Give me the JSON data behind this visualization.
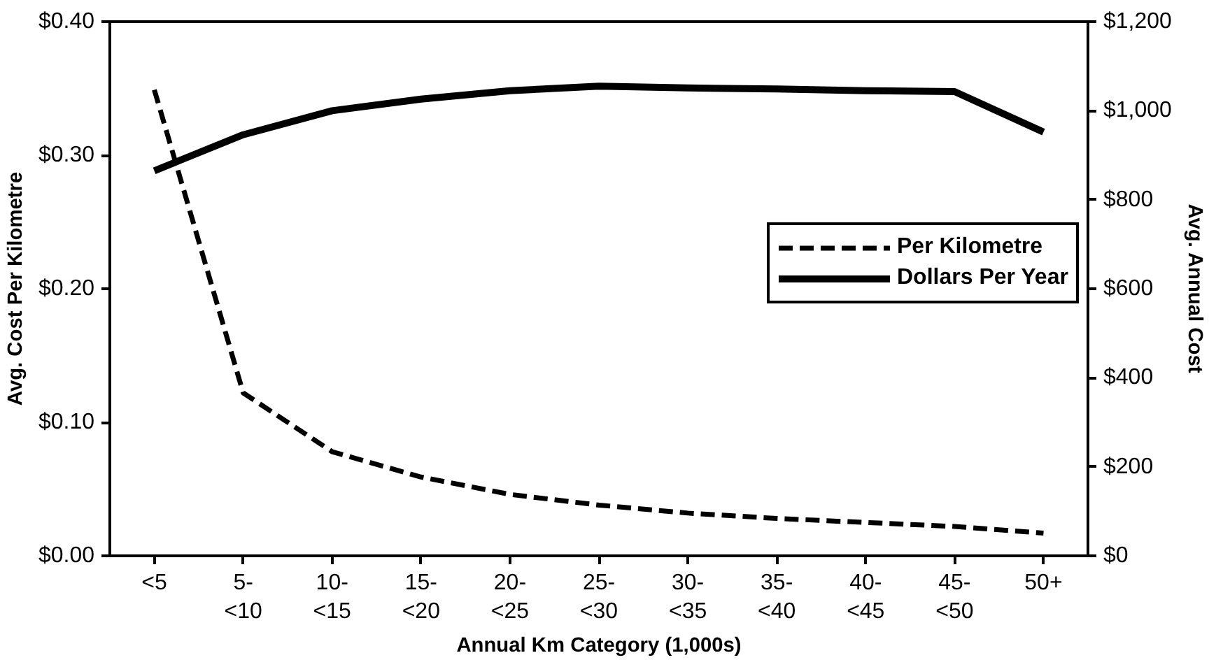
{
  "chart_data": {
    "type": "line",
    "xlabel": "Annual Km Category (1,000s)",
    "ylabel": "Avg. Cost Per Kilometre",
    "y2label": "Avg. Annual Cost",
    "categories": [
      "<5",
      "5- <10",
      "10- <15",
      "15- <20",
      "20- <25",
      "25- <30",
      "30- <35",
      "35- <40",
      "40- <45",
      "45- <50",
      "50+"
    ],
    "series": [
      {
        "name": "Per Kilometre",
        "color": "#000000",
        "line_style": "dashed",
        "values": [
          0.349,
          0.122,
          0.078,
          0.059,
          0.046,
          0.038,
          0.032,
          0.028,
          0.025,
          0.022,
          0.017
        ]
      },
      {
        "name": "Dollars Per Year",
        "color": "#000000",
        "line_style": "solid",
        "axis": "y2",
        "values": [
          865,
          946,
          1000,
          1026,
          1045,
          1055,
          1051,
          1049,
          1045,
          1043,
          952
        ]
      }
    ],
    "ylim": [
      0,
      0.4
    ],
    "yticks": [
      {
        "value": 0,
        "label": "$0.00"
      },
      {
        "value": 0.1,
        "label": "$0.10"
      },
      {
        "value": 0.2,
        "label": "$0.20"
      },
      {
        "value": 0.3,
        "label": "$0.30"
      },
      {
        "value": 0.4,
        "label": "$0.40"
      }
    ],
    "y2lim": [
      0,
      1200
    ],
    "y2ticks": [
      {
        "value": 0,
        "label": "$0"
      },
      {
        "value": 200,
        "label": "$200"
      },
      {
        "value": 400,
        "label": "$400"
      },
      {
        "value": 600,
        "label": "$600"
      },
      {
        "value": 800,
        "label": "$800"
      },
      {
        "value": 1000,
        "label": "$1,000"
      },
      {
        "value": 1200,
        "label": "$1,200"
      }
    ],
    "grid": false,
    "legend": "right",
    "marker": "none"
  }
}
